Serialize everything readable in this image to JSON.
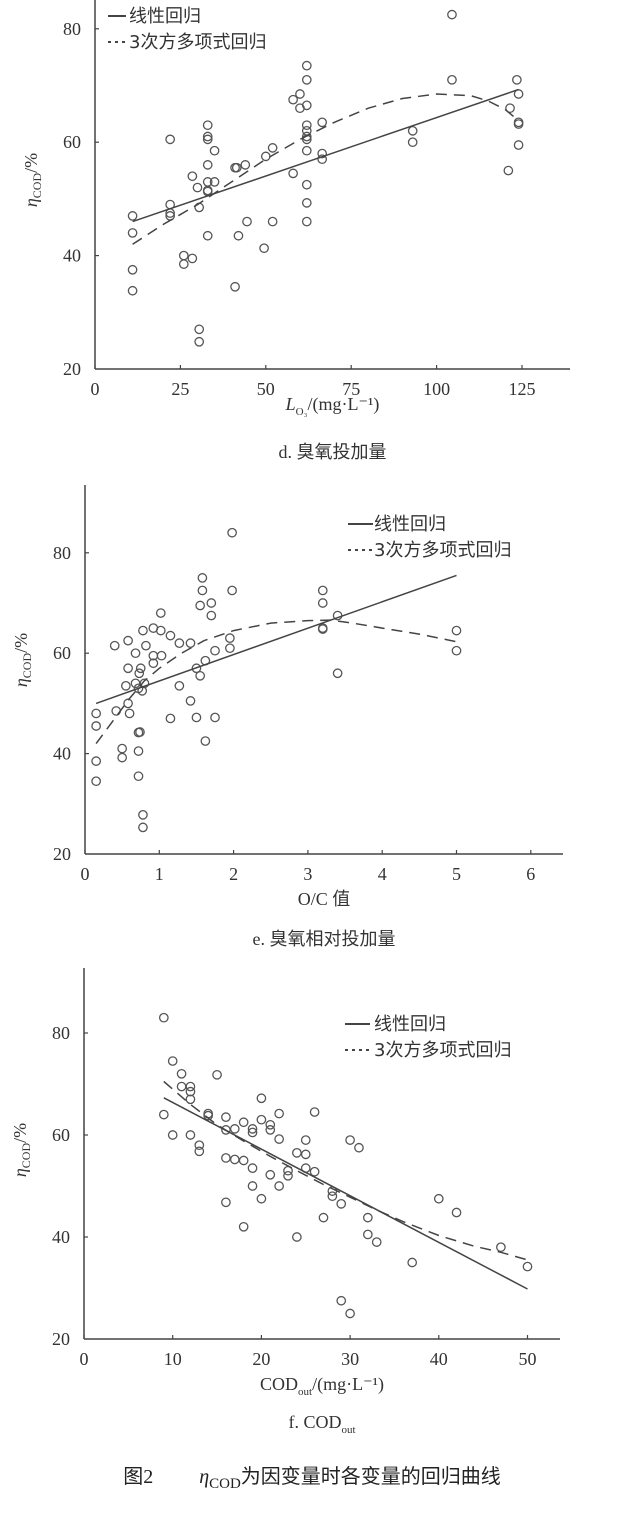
{
  "figure_caption": {
    "prefix": "图2",
    "eta": "η",
    "eta_sub": "COD",
    "text": "为因变量时各变量的回归曲线"
  },
  "legend": {
    "linear": "线性回归",
    "cubic": "3次方多项式回归"
  },
  "chart_data": [
    {
      "id": "d",
      "type": "scatter",
      "title": "d. 臭氧投加量",
      "xlabel": "L_O3/(mg·L⁻¹)",
      "ylabel": "η_COD/%",
      "xlim": [
        0,
        135
      ],
      "ylim": [
        20,
        90
      ],
      "xticks": [
        0,
        25,
        50,
        75,
        100,
        125
      ],
      "yticks": [
        20,
        40,
        60,
        80
      ],
      "legend_position": "top-left",
      "points": [
        [
          11,
          47
        ],
        [
          11,
          44
        ],
        [
          11,
          37.5
        ],
        [
          11,
          33.8
        ],
        [
          22,
          60.5
        ],
        [
          22,
          49
        ],
        [
          22,
          47.5
        ],
        [
          22,
          47
        ],
        [
          26,
          40
        ],
        [
          26,
          38.5
        ],
        [
          28.5,
          54
        ],
        [
          28.5,
          39.5
        ],
        [
          30,
          52
        ],
        [
          30.5,
          48.5
        ],
        [
          30.5,
          27
        ],
        [
          30.5,
          24.8
        ],
        [
          33,
          63
        ],
        [
          33,
          61
        ],
        [
          33,
          60.5
        ],
        [
          33,
          56
        ],
        [
          33,
          53
        ],
        [
          33,
          51.5
        ],
        [
          33,
          51.3
        ],
        [
          33,
          43.5
        ],
        [
          35,
          58.5
        ],
        [
          35,
          53
        ],
        [
          41,
          55.5
        ],
        [
          41.5,
          55.5
        ],
        [
          41,
          34.5
        ],
        [
          42,
          43.5
        ],
        [
          44,
          56
        ],
        [
          44.5,
          46
        ],
        [
          50,
          57.5
        ],
        [
          49.5,
          41.3
        ],
        [
          52,
          59
        ],
        [
          52,
          46
        ],
        [
          58,
          54.5
        ],
        [
          58,
          67.5
        ],
        [
          60,
          68.5
        ],
        [
          60,
          66
        ],
        [
          62,
          73.5
        ],
        [
          62,
          71
        ],
        [
          62,
          66.5
        ],
        [
          62,
          63
        ],
        [
          62,
          62
        ],
        [
          62,
          61
        ],
        [
          62,
          60.5
        ],
        [
          62,
          58.5
        ],
        [
          62,
          52.5
        ],
        [
          62,
          49.3
        ],
        [
          62,
          46
        ],
        [
          66.5,
          63.5
        ],
        [
          66.5,
          58
        ],
        [
          66.5,
          57
        ],
        [
          93,
          62
        ],
        [
          93,
          60
        ],
        [
          104.5,
          82.5
        ],
        [
          104.5,
          71
        ],
        [
          121,
          55
        ],
        [
          121.5,
          66
        ],
        [
          123.5,
          71
        ],
        [
          124,
          68.5
        ],
        [
          124,
          63.5
        ],
        [
          124,
          63.2
        ],
        [
          124,
          59.5
        ]
      ],
      "series": [
        {
          "name": "线性回归",
          "style": "solid",
          "x": [
            11,
            124
          ],
          "y": [
            46,
            69.3
          ]
        },
        {
          "name": "3次方多项式回归",
          "style": "dashed",
          "x": [
            11,
            20,
            30,
            40,
            50,
            60,
            70,
            80,
            90,
            100,
            110,
            115,
            120,
            124
          ],
          "y": [
            42,
            45.5,
            49,
            53,
            57,
            60.5,
            63.5,
            66,
            67.7,
            68.5,
            68.2,
            67.3,
            65.8,
            63.8
          ]
        }
      ]
    },
    {
      "id": "e",
      "type": "scatter",
      "title": "e. 臭氧相对投加量",
      "xlabel": "O/C 值",
      "ylabel": "η_COD/%",
      "xlim": [
        0,
        6.4
      ],
      "ylim": [
        20,
        94
      ],
      "xticks": [
        0,
        1,
        2,
        3,
        4,
        5,
        6
      ],
      "yticks": [
        20,
        40,
        60,
        80
      ],
      "legend_position": "top-right",
      "points": [
        [
          0.15,
          48
        ],
        [
          0.15,
          45.5
        ],
        [
          0.15,
          38.5
        ],
        [
          0.15,
          34.5
        ],
        [
          0.4,
          61.5
        ],
        [
          0.42,
          48.5
        ],
        [
          0.5,
          41
        ],
        [
          0.5,
          39.2
        ],
        [
          0.58,
          62.5
        ],
        [
          0.58,
          57
        ],
        [
          0.55,
          53.5
        ],
        [
          0.58,
          50
        ],
        [
          0.6,
          48
        ],
        [
          0.68,
          60
        ],
        [
          0.68,
          54
        ],
        [
          0.72,
          53
        ],
        [
          0.75,
          57
        ],
        [
          0.73,
          56
        ],
        [
          0.72,
          44.2
        ],
        [
          0.74,
          44.3
        ],
        [
          0.72,
          40.5
        ],
        [
          0.72,
          35.5
        ],
        [
          0.78,
          64.5
        ],
        [
          0.8,
          54
        ],
        [
          0.77,
          52.5
        ],
        [
          0.78,
          27.8
        ],
        [
          0.78,
          25.3
        ],
        [
          0.82,
          61.5
        ],
        [
          0.92,
          65
        ],
        [
          0.92,
          59.5
        ],
        [
          0.92,
          58
        ],
        [
          1.02,
          68
        ],
        [
          1.02,
          64.5
        ],
        [
          1.03,
          59.5
        ],
        [
          1.15,
          63.5
        ],
        [
          1.15,
          47
        ],
        [
          1.27,
          62
        ],
        [
          1.27,
          53.5
        ],
        [
          1.42,
          62
        ],
        [
          1.42,
          50.5
        ],
        [
          1.5,
          57
        ],
        [
          1.5,
          47.2
        ],
        [
          1.55,
          69.5
        ],
        [
          1.55,
          55.5
        ],
        [
          1.58,
          75
        ],
        [
          1.58,
          72.5
        ],
        [
          1.62,
          58.5
        ],
        [
          1.62,
          42.5
        ],
        [
          1.7,
          70
        ],
        [
          1.7,
          67.5
        ],
        [
          1.75,
          60.5
        ],
        [
          1.75,
          47.2
        ],
        [
          1.95,
          63
        ],
        [
          1.95,
          61
        ],
        [
          1.98,
          84
        ],
        [
          1.98,
          72.5
        ],
        [
          3.2,
          72.5
        ],
        [
          3.2,
          70
        ],
        [
          3.2,
          65
        ],
        [
          3.2,
          64.8
        ],
        [
          3.4,
          67.5
        ],
        [
          3.4,
          56
        ],
        [
          5,
          64.5
        ],
        [
          5,
          60.5
        ]
      ],
      "series": [
        {
          "name": "线性回归",
          "style": "solid",
          "x": [
            0.15,
            5
          ],
          "y": [
            50,
            75.5
          ]
        },
        {
          "name": "3次方多项式回归",
          "style": "dashed",
          "x": [
            0.15,
            0.4,
            0.6,
            0.8,
            1,
            1.3,
            1.6,
            2,
            2.5,
            3,
            3.3,
            3.6,
            4,
            4.5,
            5
          ],
          "y": [
            42,
            47,
            51,
            54.5,
            57,
            60,
            62.5,
            64.5,
            66,
            66.5,
            66.6,
            66,
            65,
            63.8,
            62.3
          ]
        }
      ]
    },
    {
      "id": "f",
      "type": "scatter",
      "title": "f. COD_out",
      "xlabel": "COD_out/(mg·L⁻¹)",
      "ylabel": "η_COD/%",
      "xlim": [
        0,
        54
      ],
      "ylim": [
        20,
        94
      ],
      "xticks": [
        0,
        10,
        20,
        30,
        40,
        50
      ],
      "yticks": [
        20,
        40,
        60,
        80
      ],
      "legend_position": "top-right",
      "points": [
        [
          9,
          83
        ],
        [
          9,
          64
        ],
        [
          10,
          74.5
        ],
        [
          10,
          60
        ],
        [
          11,
          72
        ],
        [
          11,
          69.5
        ],
        [
          12,
          69.5
        ],
        [
          12,
          68.5
        ],
        [
          12,
          67
        ],
        [
          12,
          60
        ],
        [
          13,
          58
        ],
        [
          13,
          56.8
        ],
        [
          14,
          64.2
        ],
        [
          14,
          63.8
        ],
        [
          15,
          71.8
        ],
        [
          16,
          63.5
        ],
        [
          16,
          61
        ],
        [
          16,
          55.5
        ],
        [
          16,
          46.8
        ],
        [
          17,
          61.2
        ],
        [
          17,
          55.2
        ],
        [
          18,
          62.5
        ],
        [
          18,
          55
        ],
        [
          18,
          42
        ],
        [
          19,
          61.2
        ],
        [
          19,
          60.5
        ],
        [
          19,
          53.5
        ],
        [
          19,
          50
        ],
        [
          20,
          67.2
        ],
        [
          20,
          63
        ],
        [
          20,
          47.5
        ],
        [
          21,
          62
        ],
        [
          21,
          61
        ],
        [
          21,
          52.2
        ],
        [
          22,
          64.2
        ],
        [
          22,
          59.2
        ],
        [
          22,
          50
        ],
        [
          23,
          53
        ],
        [
          23,
          52
        ],
        [
          24,
          56.5
        ],
        [
          24,
          40
        ],
        [
          25,
          59
        ],
        [
          25,
          56.2
        ],
        [
          25,
          53.5
        ],
        [
          26,
          64.5
        ],
        [
          26,
          52.8
        ],
        [
          27,
          43.8
        ],
        [
          28,
          49
        ],
        [
          28,
          48
        ],
        [
          29,
          46.5
        ],
        [
          29,
          27.5
        ],
        [
          30,
          59
        ],
        [
          30,
          25
        ],
        [
          31,
          57.5
        ],
        [
          32,
          43.8
        ],
        [
          32,
          40.5
        ],
        [
          33,
          39
        ],
        [
          37,
          35
        ],
        [
          40,
          47.5
        ],
        [
          42,
          44.8
        ],
        [
          47,
          38
        ],
        [
          50,
          34.2
        ]
      ],
      "series": [
        {
          "name": "线性回归",
          "style": "solid",
          "x": [
            9,
            50
          ],
          "y": [
            67.3,
            29.8
          ]
        },
        {
          "name": "3次方多项式回归",
          "style": "dashed",
          "x": [
            9,
            12,
            15,
            18,
            21,
            24,
            27,
            30,
            33,
            36,
            40,
            44,
            47,
            50
          ],
          "y": [
            70.5,
            66,
            62,
            58.8,
            55.8,
            53,
            50.3,
            47.8,
            45.3,
            43,
            40.3,
            38.2,
            37,
            35.5
          ]
        }
      ]
    }
  ]
}
